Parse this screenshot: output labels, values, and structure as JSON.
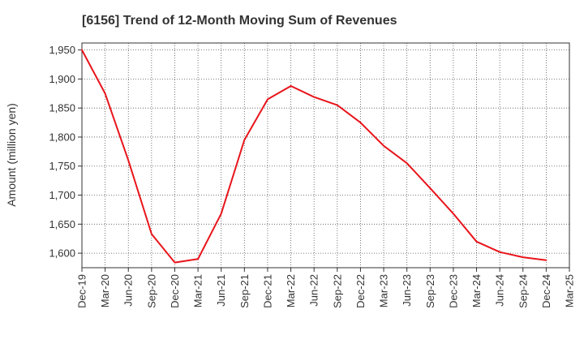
{
  "chart_data": {
    "type": "line",
    "title": "[6156]  Trend of 12-Month Moving Sum of Revenues",
    "xlabel": "",
    "ylabel": "Amount (million yen)",
    "ylim": [
      1575,
      1962
    ],
    "yticks": [
      1600,
      1650,
      1700,
      1750,
      1800,
      1850,
      1900,
      1950
    ],
    "ytick_labels": [
      "1,600",
      "1,650",
      "1,700",
      "1,750",
      "1,800",
      "1,850",
      "1,900",
      "1,950"
    ],
    "categories": [
      "Dec-19",
      "Mar-20",
      "Jun-20",
      "Sep-20",
      "Dec-20",
      "Mar-21",
      "Jun-21",
      "Sep-21",
      "Dec-21",
      "Mar-22",
      "Jun-22",
      "Sep-22",
      "Dec-22",
      "Mar-23",
      "Jun-23",
      "Sep-23",
      "Dec-23",
      "Mar-24",
      "Jun-24",
      "Sep-24",
      "Dec-24",
      "Mar-25"
    ],
    "series": [
      {
        "color": "#e8141b",
        "values": [
          1950,
          1875,
          1760,
          1633,
          1584,
          1590,
          1668,
          1795,
          1865,
          1888,
          1869,
          1855,
          1825,
          1785,
          1755,
          1712,
          1668,
          1620,
          1602,
          1593,
          1588,
          null
        ]
      }
    ],
    "grid": true,
    "grid_style": "dotted"
  }
}
